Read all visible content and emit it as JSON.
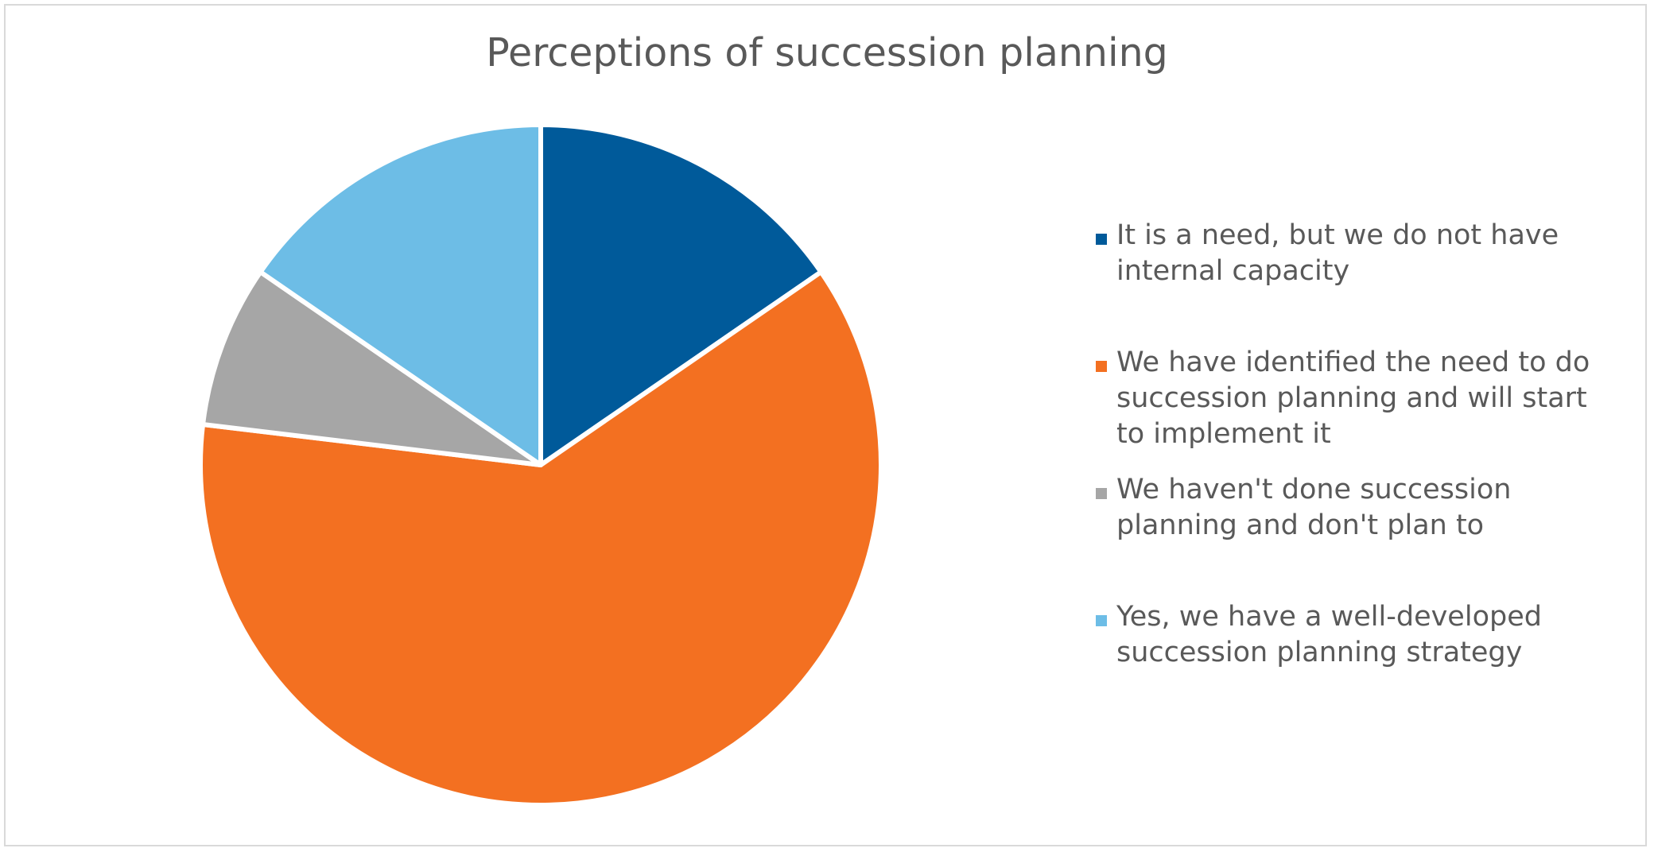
{
  "chart_data": {
    "type": "pie",
    "title": "Perceptions of succession planning",
    "legend_position": "right",
    "categories": [
      "It is a need, but we do not have\ninternal capacity",
      "We have identified the need to do\nsuccession planning and will start\nto implement it",
      "We haven't done succession\nplanning and don't plan to",
      "Yes, we have a well-developed\nsuccession planning strategy"
    ],
    "values": [
      15.4,
      61.5,
      7.7,
      15.4
    ],
    "colors": [
      "#005A9A",
      "#F37021",
      "#A6A6A6",
      "#6DBDE6"
    ]
  }
}
